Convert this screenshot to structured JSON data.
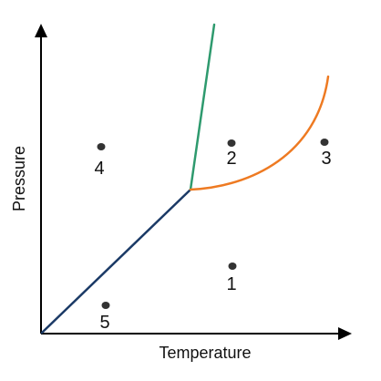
{
  "axes": {
    "x_label": "Temperature",
    "y_label": "Pressure"
  },
  "curves": [
    {
      "name": "solid-gas-curve",
      "color": "#1b3a66"
    },
    {
      "name": "solid-liquid-curve",
      "color": "#2e9a6e"
    },
    {
      "name": "liquid-gas-curve",
      "color": "#ee7a22"
    }
  ],
  "points": [
    {
      "label": "1"
    },
    {
      "label": "2"
    },
    {
      "label": "3"
    },
    {
      "label": "4"
    },
    {
      "label": "5"
    }
  ]
}
